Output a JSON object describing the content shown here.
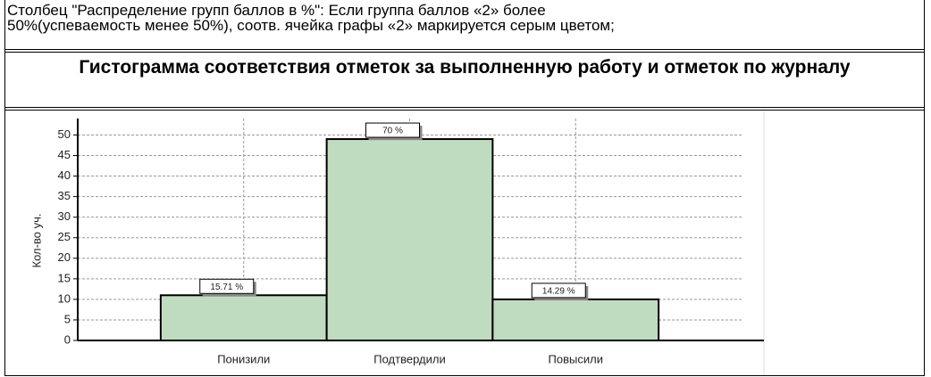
{
  "note_lines": [
    "Столбец \"Распределение групп баллов в %\": Если группа баллов «2» более",
    "50%(успеваемость менее 50%), соотв. ячейка графы «2» маркируется серым цветом;"
  ],
  "chart_data": {
    "type": "bar",
    "title": "Гистограмма соответствия отметок за выполненную работу и отметок по журналу",
    "y_label": "Кол-во уч.",
    "categories": [
      "Понизили",
      "Подтвердили",
      "Повысили"
    ],
    "values": [
      11,
      49,
      10
    ],
    "annotations": [
      "15.71 %",
      "70 %",
      "14.29 %"
    ],
    "color": "#c0dcc0",
    "ylim": [
      0,
      54
    ],
    "yticks": [
      0,
      5,
      10,
      15,
      20,
      25,
      30,
      35,
      40,
      45,
      50
    ],
    "grid": true
  }
}
